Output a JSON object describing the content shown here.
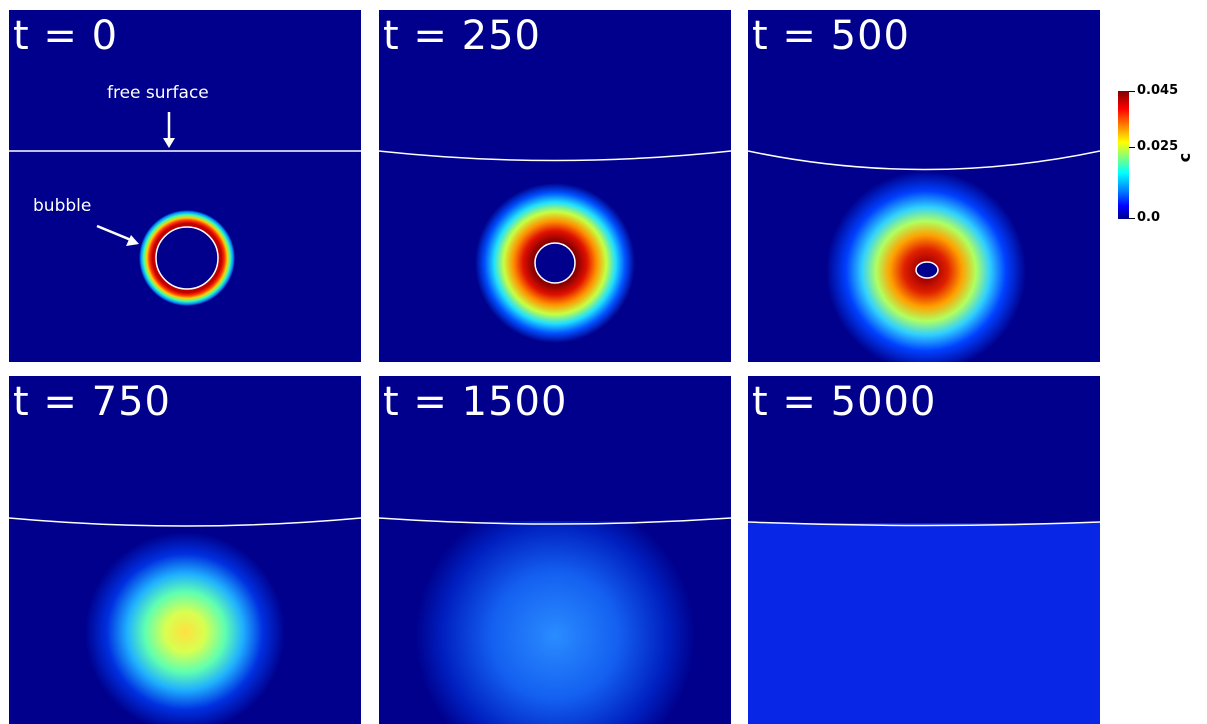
{
  "panels": [
    {
      "time_label": "t = 0"
    },
    {
      "time_label": "t = 250"
    },
    {
      "time_label": "t = 500"
    },
    {
      "time_label": "t = 750"
    },
    {
      "time_label": "t = 1500"
    },
    {
      "time_label": "t = 5000"
    }
  ],
  "annotations": {
    "free_surface": "free surface",
    "bubble": "bubble"
  },
  "colorbar": {
    "max_label": "0.045",
    "mid_label": "0.025",
    "min_label": "0.0",
    "variable": "c",
    "colormap": "jet",
    "background_color": "#00008c"
  }
}
